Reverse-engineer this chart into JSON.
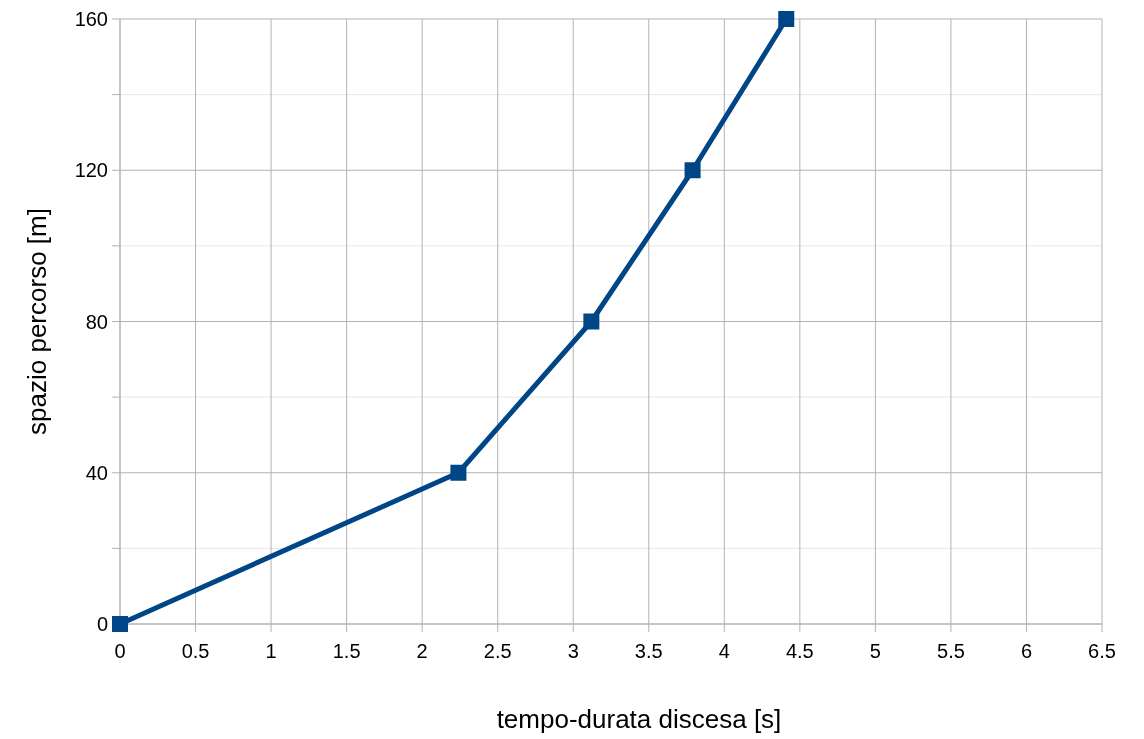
{
  "chart_data": {
    "type": "line",
    "xlabel": "tempo-durata discesa  [s]",
    "ylabel": "spazio percorso  [m]",
    "x": [
      0,
      2.24,
      3.12,
      3.79,
      4.41
    ],
    "series": [
      {
        "color": "#004586",
        "values": [
          0,
          40,
          80,
          120,
          160
        ]
      }
    ],
    "xlim": [
      0,
      6.5
    ],
    "xticks": [
      0,
      0.5,
      1,
      1.5,
      2,
      2.5,
      3,
      3.5,
      4,
      4.5,
      5,
      5.5,
      6,
      6.5
    ],
    "ylim": [
      0,
      160
    ],
    "yticks": [
      0,
      {
        "value": 20,
        "label": null
      },
      40,
      {
        "value": 60,
        "label": null
      },
      80,
      {
        "value": 100,
        "label": null
      },
      120,
      {
        "value": 140,
        "label": null
      },
      160
    ],
    "grid": true,
    "marker": "square",
    "line_style": "solid"
  }
}
